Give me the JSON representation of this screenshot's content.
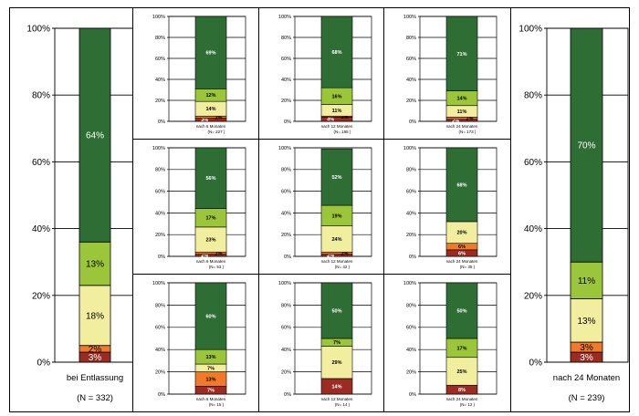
{
  "colors": {
    "dark_green": "#2e6e34",
    "light_green": "#9bc63a",
    "pale_yellow": "#f2eea0",
    "orange": "#f07a2a",
    "dark_red": "#9c2c22",
    "frame": "#000000",
    "grid": "#000000"
  },
  "chart_data": [
    {
      "type": "bar",
      "stacked": true,
      "panel": "left-large",
      "xlabel": "bei Entlassung",
      "n_label": "(N = 332)",
      "ylim": [
        0,
        100
      ],
      "yticks": [
        "0%",
        "20%",
        "40%",
        "60%",
        "80%",
        "100%"
      ],
      "segments": [
        {
          "name": "dark-red",
          "value": 3,
          "label": "3%"
        },
        {
          "name": "orange",
          "value": 2,
          "label": "2%"
        },
        {
          "name": "pale-yellow",
          "value": 18,
          "label": "18%"
        },
        {
          "name": "light-green",
          "value": 13,
          "label": "13%"
        },
        {
          "name": "dark-green",
          "value": 64,
          "label": "64%"
        }
      ]
    },
    {
      "type": "bar",
      "stacked": true,
      "panel": "grid-r1-c1",
      "xlabel": "nach 6 Monaten",
      "n_label": "(N= 227 )",
      "ylim": [
        0,
        100
      ],
      "yticks": [
        "0%",
        "20%",
        "40%",
        "60%",
        "80%",
        "100%"
      ],
      "segments": [
        {
          "name": "dark-red",
          "value": 3,
          "label": "3%"
        },
        {
          "name": "orange",
          "value": 2,
          "label": "2%"
        },
        {
          "name": "pale-yellow",
          "value": 14,
          "label": "14%"
        },
        {
          "name": "light-green",
          "value": 12,
          "label": "12%"
        },
        {
          "name": "dark-green",
          "value": 69,
          "label": "69%"
        }
      ]
    },
    {
      "type": "bar",
      "stacked": true,
      "panel": "grid-r1-c2",
      "xlabel": "nach 12 Monaten",
      "n_label": "(N= 195 )",
      "ylim": [
        0,
        100
      ],
      "yticks": [
        "0%",
        "20%",
        "40%",
        "60%",
        "80%",
        "100%"
      ],
      "segments": [
        {
          "name": "dark-red",
          "value": 4,
          "label": "4%"
        },
        {
          "name": "orange",
          "value": 1,
          "label": "1%"
        },
        {
          "name": "pale-yellow",
          "value": 11,
          "label": "11%"
        },
        {
          "name": "light-green",
          "value": 16,
          "label": "16%"
        },
        {
          "name": "dark-green",
          "value": 68,
          "label": "68%"
        }
      ]
    },
    {
      "type": "bar",
      "stacked": true,
      "panel": "grid-r1-c3",
      "xlabel": "nach 24 Monaten",
      "n_label": "(N= 173 )",
      "ylim": [
        0,
        100
      ],
      "yticks": [
        "0%",
        "20%",
        "40%",
        "60%",
        "80%",
        "100%"
      ],
      "segments": [
        {
          "name": "dark-red",
          "value": 2,
          "label": "2%"
        },
        {
          "name": "orange",
          "value": 2,
          "label": "2%"
        },
        {
          "name": "pale-yellow",
          "value": 11,
          "label": "11%"
        },
        {
          "name": "light-green",
          "value": 14,
          "label": "14%"
        },
        {
          "name": "dark-green",
          "value": 71,
          "label": "71%"
        }
      ]
    },
    {
      "type": "bar",
      "stacked": true,
      "panel": "grid-r2-c1",
      "xlabel": "nach 6 Monaten",
      "n_label": "(N= 53 )",
      "ylim": [
        0,
        100
      ],
      "yticks": [
        "0%",
        "20%",
        "40%",
        "60%",
        "80%",
        "100%"
      ],
      "segments": [
        {
          "name": "dark-red",
          "value": 2,
          "label": "2%"
        },
        {
          "name": "orange",
          "value": 2,
          "label": "2%"
        },
        {
          "name": "pale-yellow",
          "value": 23,
          "label": "23%"
        },
        {
          "name": "light-green",
          "value": 17,
          "label": "17%"
        },
        {
          "name": "dark-green",
          "value": 56,
          "label": "56%"
        }
      ]
    },
    {
      "type": "bar",
      "stacked": true,
      "panel": "grid-r2-c2",
      "xlabel": "nach 12 Monaten",
      "n_label": "(N= 42 )",
      "ylim": [
        0,
        100
      ],
      "yticks": [
        "0%",
        "20%",
        "40%",
        "60%",
        "80%",
        "100%"
      ],
      "segments": [
        {
          "name": "dark-red",
          "value": 2,
          "label": "2%"
        },
        {
          "name": "orange",
          "value": 2,
          "label": "2%"
        },
        {
          "name": "pale-yellow",
          "value": 24,
          "label": "24%"
        },
        {
          "name": "light-green",
          "value": 19,
          "label": "19%"
        },
        {
          "name": "dark-green",
          "value": 52,
          "label": "52%"
        }
      ]
    },
    {
      "type": "bar",
      "stacked": true,
      "panel": "grid-r2-c3",
      "xlabel": "nach 24 Monaten",
      "n_label": "(N= 35 )",
      "ylim": [
        0,
        100
      ],
      "yticks": [
        "0%",
        "20%",
        "40%",
        "60%",
        "80%",
        "100%"
      ],
      "segments": [
        {
          "name": "dark-red",
          "value": 6,
          "label": "6%"
        },
        {
          "name": "orange",
          "value": 6,
          "label": "6%"
        },
        {
          "name": "pale-yellow",
          "value": 20,
          "label": "20%"
        },
        {
          "name": "light-green",
          "value": 0,
          "label": ""
        },
        {
          "name": "dark-green",
          "value": 68,
          "label": "68%"
        }
      ]
    },
    {
      "type": "bar",
      "stacked": true,
      "panel": "grid-r3-c1",
      "xlabel": "nach 6 Monaten",
      "n_label": "(N= 15 )",
      "ylim": [
        0,
        100
      ],
      "yticks": [
        "0%",
        "20%",
        "40%",
        "60%",
        "80%",
        "100%"
      ],
      "segments": [
        {
          "name": "dark-red",
          "value": 7,
          "label": "7%"
        },
        {
          "name": "orange",
          "value": 13,
          "label": "13%"
        },
        {
          "name": "pale-yellow",
          "value": 7,
          "label": "7%"
        },
        {
          "name": "light-green",
          "value": 13,
          "label": "13%"
        },
        {
          "name": "dark-green",
          "value": 60,
          "label": "60%"
        }
      ]
    },
    {
      "type": "bar",
      "stacked": true,
      "panel": "grid-r3-c2",
      "xlabel": "nach 12 Monaten",
      "n_label": "(N= 14 )",
      "ylim": [
        0,
        100
      ],
      "yticks": [
        "0%",
        "20%",
        "40%",
        "60%",
        "80%",
        "100%"
      ],
      "segments": [
        {
          "name": "dark-red",
          "value": 14,
          "label": "14%"
        },
        {
          "name": "orange",
          "value": 0,
          "label": ""
        },
        {
          "name": "pale-yellow",
          "value": 29,
          "label": "29%"
        },
        {
          "name": "light-green",
          "value": 7,
          "label": "7%"
        },
        {
          "name": "dark-green",
          "value": 50,
          "label": "50%"
        }
      ]
    },
    {
      "type": "bar",
      "stacked": true,
      "panel": "grid-r3-c3",
      "xlabel": "nach 24 Monaten",
      "n_label": "(N= 12 )",
      "ylim": [
        0,
        100
      ],
      "yticks": [
        "0%",
        "20%",
        "40%",
        "60%",
        "80%",
        "100%"
      ],
      "segments": [
        {
          "name": "dark-red",
          "value": 8,
          "label": "8%"
        },
        {
          "name": "orange",
          "value": 0,
          "label": ""
        },
        {
          "name": "pale-yellow",
          "value": 25,
          "label": "25%"
        },
        {
          "name": "light-green",
          "value": 17,
          "label": "17%"
        },
        {
          "name": "dark-green",
          "value": 50,
          "label": "50%"
        }
      ]
    },
    {
      "type": "bar",
      "stacked": true,
      "panel": "right-large",
      "xlabel": "nach 24 Monaten",
      "n_label": "(N = 239)",
      "ylim": [
        0,
        100
      ],
      "yticks": [
        "0%",
        "20%",
        "40%",
        "60%",
        "80%",
        "100%"
      ],
      "segments": [
        {
          "name": "dark-red",
          "value": 3,
          "label": "3%"
        },
        {
          "name": "orange",
          "value": 3,
          "label": "3%"
        },
        {
          "name": "pale-yellow",
          "value": 13,
          "label": "13%"
        },
        {
          "name": "light-green",
          "value": 11,
          "label": "11%"
        },
        {
          "name": "dark-green",
          "value": 70,
          "label": "70%"
        }
      ]
    }
  ]
}
